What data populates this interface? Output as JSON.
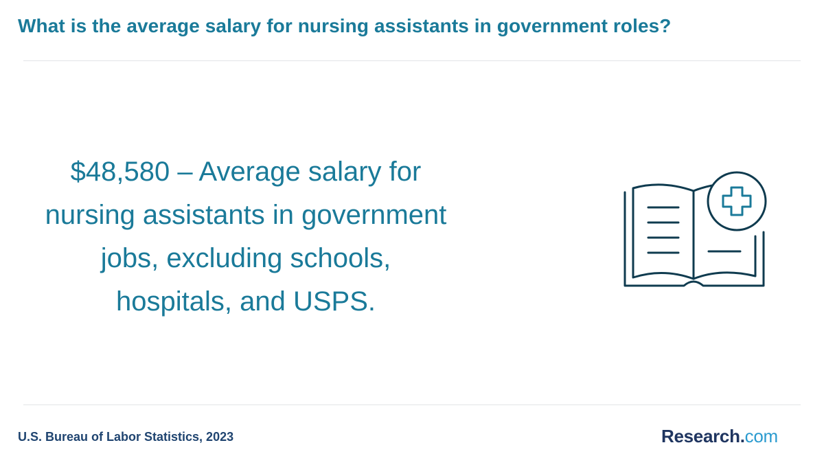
{
  "header": {
    "title": "What is the average salary for nursing assistants in government roles?"
  },
  "main": {
    "stat_text": "$48,580 – Average salary for nursing assistants in government jobs, excluding schools, hospitals, and USPS.",
    "icon": "medical-book-icon"
  },
  "footer": {
    "source": "U.S. Bureau of Labor Statistics, 2023",
    "logo": {
      "brand": "Research",
      "dot": ".",
      "tld": "com"
    }
  },
  "colors": {
    "accent": "#1a7a99",
    "navy": "#1f3560",
    "icon_stroke": "#0f3b4f",
    "logo_tld": "#2b9bcf"
  }
}
